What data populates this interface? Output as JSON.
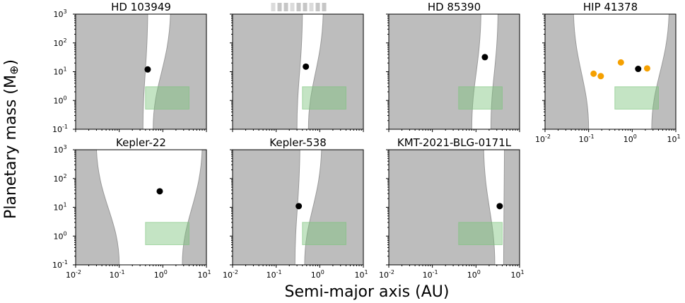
{
  "figure": {
    "xlabel": "Semi-major axis (AU)",
    "ylabel_main": "Planetary mass (M",
    "ylabel_symbol": "⊕",
    "ylabel_close": ")"
  },
  "chart_data": [
    {
      "type": "scatter",
      "title": "HD 103949",
      "xscale": "log",
      "yscale": "log",
      "xlim": [
        0.01,
        10
      ],
      "ylim": [
        0.1,
        1000
      ],
      "grid": false,
      "unstable_region": {
        "inner_edge_au": [
          0.35,
          0.45
        ],
        "outer_edge_au": [
          0.6,
          1.5
        ]
      },
      "highlight_box": {
        "x": [
          0.4,
          4.0
        ],
        "y": [
          0.5,
          3.0
        ]
      },
      "planets_black": [
        {
          "x": 0.45,
          "y": 12
        }
      ],
      "planets_orange": []
    },
    {
      "type": "scatter",
      "title": "",
      "title_redacted": true,
      "xscale": "log",
      "yscale": "log",
      "xlim": [
        0.01,
        10
      ],
      "ylim": [
        0.1,
        1000
      ],
      "grid": false,
      "unstable_region": {
        "inner_edge_au": [
          0.3,
          0.4
        ],
        "outer_edge_au": [
          0.55,
          1.2
        ]
      },
      "highlight_box": {
        "x": [
          0.4,
          4.0
        ],
        "y": [
          0.5,
          3.0
        ]
      },
      "planets_black": [
        {
          "x": 0.48,
          "y": 15
        }
      ],
      "planets_orange": []
    },
    {
      "type": "scatter",
      "title": "HD 85390",
      "xscale": "log",
      "yscale": "log",
      "xlim": [
        0.01,
        10
      ],
      "ylim": [
        0.1,
        1000
      ],
      "grid": false,
      "unstable_region": {
        "inner_edge_au": [
          0.8,
          1.3
        ],
        "outer_edge_au": [
          2.2,
          3.2
        ]
      },
      "highlight_box": {
        "x": [
          0.4,
          4.0
        ],
        "y": [
          0.5,
          3.0
        ]
      },
      "planets_black": [
        {
          "x": 1.6,
          "y": 32
        }
      ],
      "planets_orange": []
    },
    {
      "type": "scatter",
      "title": "HIP 41378",
      "xscale": "log",
      "yscale": "log",
      "xlim": [
        0.01,
        10
      ],
      "ylim": [
        0.1,
        1000
      ],
      "grid": false,
      "unstable_region": {
        "inner_edge_au": [
          0.1,
          0.045
        ],
        "outer_edge_au": [
          2.8,
          7.0
        ]
      },
      "highlight_box": {
        "x": [
          0.4,
          4.0
        ],
        "y": [
          0.5,
          3.0
        ]
      },
      "planets_black": [
        {
          "x": 1.37,
          "y": 12.5
        }
      ],
      "planets_orange": [
        {
          "x": 0.13,
          "y": 8.5
        },
        {
          "x": 0.19,
          "y": 7.0
        },
        {
          "x": 0.55,
          "y": 21.0
        },
        {
          "x": 2.2,
          "y": 13.0
        }
      ]
    },
    {
      "type": "scatter",
      "title": "Kepler-22",
      "xscale": "log",
      "yscale": "log",
      "xlim": [
        0.01,
        10
      ],
      "ylim": [
        0.1,
        1000
      ],
      "grid": false,
      "unstable_region": {
        "inner_edge_au": [
          0.1,
          0.03
        ],
        "outer_edge_au": [
          2.8,
          8.0
        ]
      },
      "highlight_box": {
        "x": [
          0.4,
          4.0
        ],
        "y": [
          0.5,
          3.0
        ]
      },
      "planets_black": [
        {
          "x": 0.85,
          "y": 36
        }
      ],
      "planets_orange": []
    },
    {
      "type": "scatter",
      "title": "Kepler-538",
      "xscale": "log",
      "yscale": "log",
      "xlim": [
        0.01,
        10
      ],
      "ylim": [
        0.1,
        1000
      ],
      "grid": false,
      "unstable_region": {
        "inner_edge_au": [
          0.27,
          0.35
        ],
        "outer_edge_au": [
          0.45,
          1.1
        ]
      },
      "highlight_box": {
        "x": [
          0.4,
          4.0
        ],
        "y": [
          0.5,
          3.0
        ]
      },
      "planets_black": [
        {
          "x": 0.33,
          "y": 11
        }
      ],
      "planets_orange": []
    },
    {
      "type": "scatter",
      "title": "KMT-2021-BLG-0171L",
      "xscale": "log",
      "yscale": "log",
      "xlim": [
        0.01,
        10
      ],
      "ylim": [
        0.1,
        1000
      ],
      "grid": false,
      "unstable_region": {
        "inner_edge_au": [
          2.7,
          1.5
        ],
        "outer_edge_au": [
          4.3,
          4.5
        ]
      },
      "highlight_box": {
        "x": [
          0.4,
          4.0
        ],
        "y": [
          0.5,
          3.0
        ]
      },
      "planets_black": [
        {
          "x": 3.5,
          "y": 11
        }
      ],
      "planets_orange": []
    }
  ],
  "colors": {
    "unstable_fill": "#bdbdbd",
    "unstable_edge": "#9a9a9a",
    "box_fill": "#7cc47c",
    "planet_black": "#000000",
    "planet_orange": "#f5a000",
    "redacted": "#b8b8b8"
  }
}
